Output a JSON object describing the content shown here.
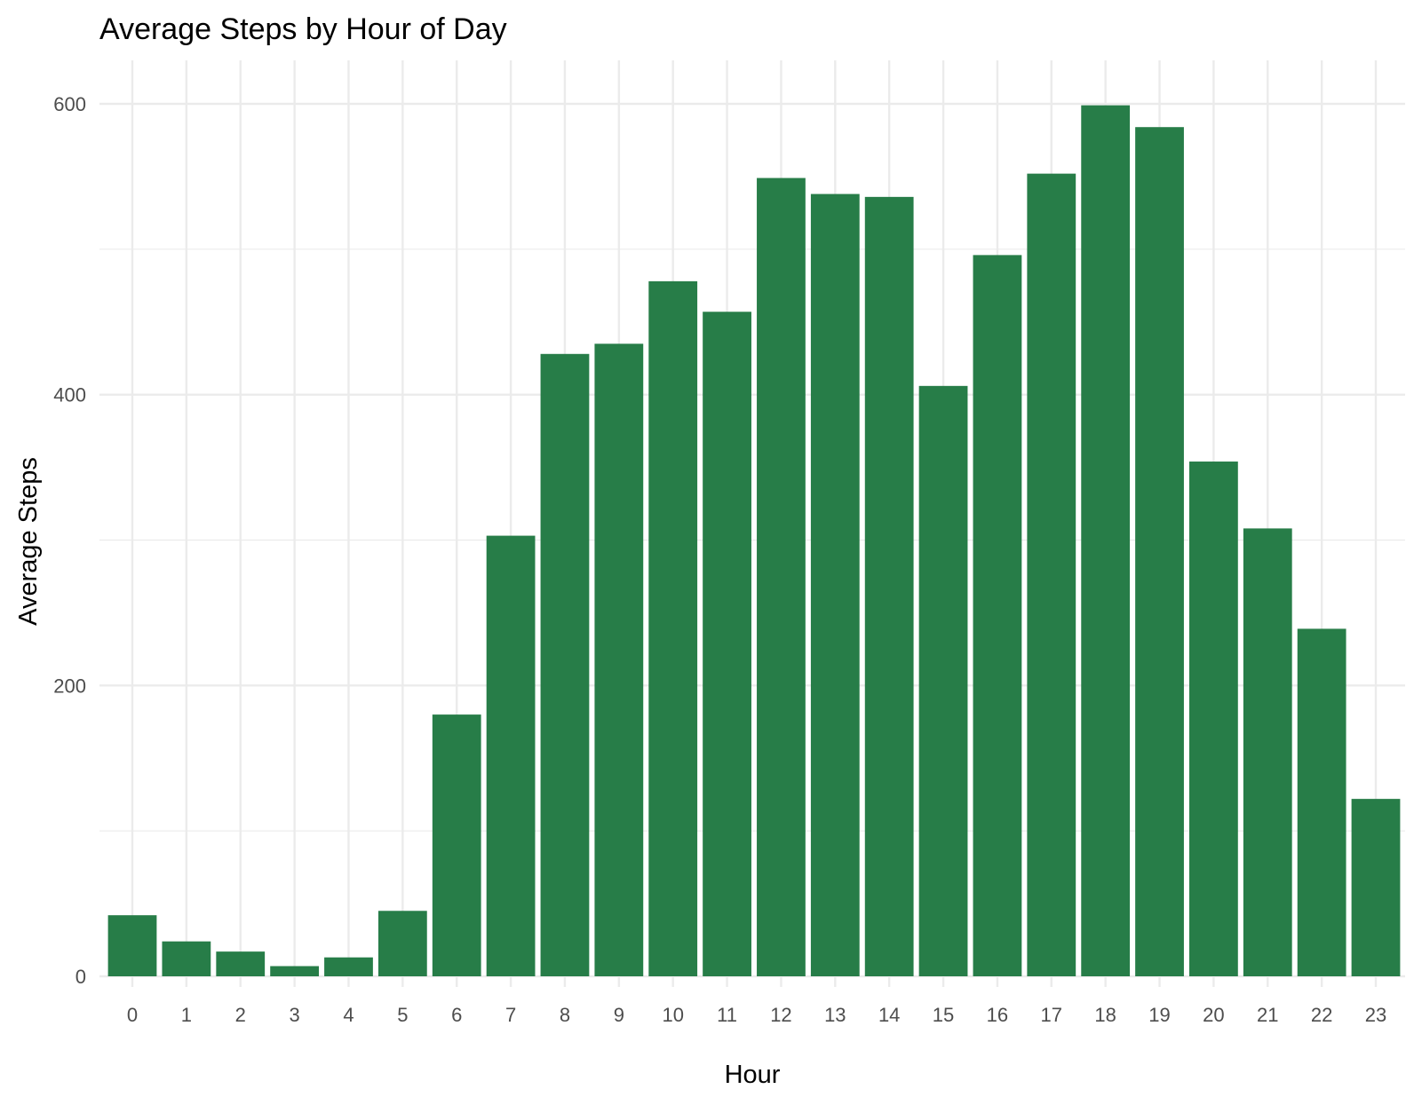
{
  "chart_data": {
    "type": "bar",
    "title": "Average Steps by Hour of Day",
    "xlabel": "Hour",
    "ylabel": "Average Steps",
    "categories": [
      "0",
      "1",
      "2",
      "3",
      "4",
      "5",
      "6",
      "7",
      "8",
      "9",
      "10",
      "11",
      "12",
      "13",
      "14",
      "15",
      "16",
      "17",
      "18",
      "19",
      "20",
      "21",
      "22",
      "23"
    ],
    "values": [
      42,
      24,
      17,
      7,
      13,
      45,
      180,
      303,
      428,
      435,
      478,
      457,
      549,
      538,
      536,
      406,
      496,
      552,
      599,
      584,
      354,
      308,
      239,
      122
    ],
    "ylim": [
      0,
      600
    ],
    "yticks": [
      "0",
      "200",
      "400",
      "600"
    ],
    "grid": true,
    "bar_color": "#277D48"
  }
}
